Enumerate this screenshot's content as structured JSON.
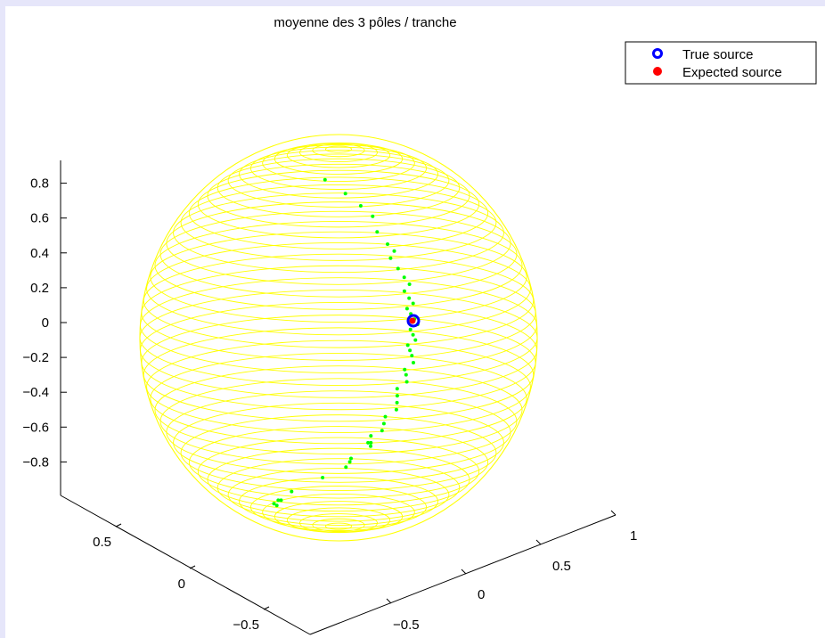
{
  "chart_data": {
    "type": "scatter",
    "title": "moyenne des 3 pôles / tranche",
    "zlabel": "",
    "z_ticks": [
      "0.8",
      "0.6",
      "0.4",
      "0.2",
      "0",
      "−0.2",
      "−0.4",
      "−0.6",
      "−0.8"
    ],
    "left_axis_ticks": [
      "0.5",
      "0",
      "−0.5"
    ],
    "right_axis_ticks": [
      "1",
      "0.5",
      "0",
      "−0.5"
    ],
    "grid": false,
    "legend_position": "top-right",
    "colors": {
      "background": "#e6e6fa",
      "plot_area": "#ffffff",
      "sphere": "#ffff00",
      "trajectory": "#00ff00",
      "true_source": "#0000ff",
      "expected_source": "#ff0000"
    },
    "series": [
      {
        "name": "True source",
        "marker": "open-circle",
        "points": [
          {
            "x": 1.0,
            "y": 0.0,
            "z": 0.0
          }
        ]
      },
      {
        "name": "Expected source",
        "marker": "filled-circle",
        "points": [
          {
            "x": 1.0,
            "y": 0.0,
            "z": 0.0
          }
        ]
      }
    ],
    "trajectory_z": [
      0.82,
      0.74,
      0.67,
      0.61,
      0.52,
      0.45,
      0.41,
      0.37,
      0.31,
      0.26,
      0.22,
      0.18,
      0.14,
      0.11,
      0.08,
      0.05,
      0.02,
      -0.01,
      -0.04,
      -0.07,
      -0.1,
      -0.13,
      -0.16,
      -0.19,
      -0.23,
      -0.27,
      -0.3,
      -0.34,
      -0.38,
      -0.42,
      -0.46,
      -0.5,
      -0.54,
      -0.58,
      -0.62,
      -0.65,
      -0.69,
      -0.69,
      -0.71,
      -0.78,
      -0.8,
      -0.83,
      -0.89,
      -0.97,
      -1.02,
      -1.02,
      -1.04,
      -1.05
    ]
  }
}
